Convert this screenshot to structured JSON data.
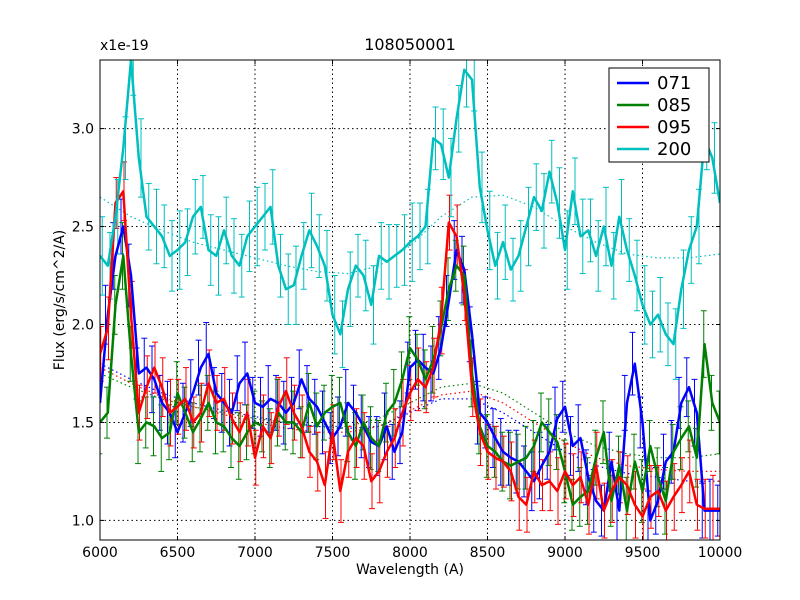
{
  "chart_data": {
    "type": "line",
    "title": "108050001",
    "xlabel": "Wavelength (A)",
    "ylabel": "Flux (erg/s/cm^2/A)",
    "offset_label": "x1e-19",
    "xlim": [
      6000,
      10000
    ],
    "ylim": [
      0.9,
      3.35
    ],
    "xticks": [
      6000,
      6500,
      7000,
      7500,
      8000,
      8500,
      9000,
      9500,
      10000
    ],
    "xtick_labels": [
      "6000",
      "6500",
      "7000",
      "7500",
      "8000",
      "8500",
      "9000",
      "9500",
      "10000"
    ],
    "yticks": [
      1.0,
      1.5,
      2.0,
      2.5,
      3.0
    ],
    "ytick_labels": [
      "1.0",
      "1.5",
      "2.0",
      "2.5",
      "3.0"
    ],
    "grid": true,
    "legend_position": "top-right",
    "series": [
      {
        "name": "071",
        "color": "#0000ff",
        "x": [
          6000,
          6050,
          6100,
          6150,
          6200,
          6250,
          6300,
          6350,
          6400,
          6450,
          6500,
          6550,
          6600,
          6650,
          6700,
          6750,
          6800,
          6850,
          6900,
          6950,
          7000,
          7050,
          7100,
          7150,
          7200,
          7250,
          7300,
          7350,
          7400,
          7450,
          7500,
          7550,
          7600,
          7650,
          7700,
          7750,
          7800,
          7850,
          7900,
          7950,
          8000,
          8050,
          8100,
          8150,
          8200,
          8250,
          8300,
          8350,
          8400,
          8450,
          8500,
          8550,
          8600,
          8650,
          8700,
          8750,
          8800,
          8850,
          8900,
          8950,
          9000,
          9050,
          9100,
          9150,
          9200,
          9250,
          9300,
          9350,
          9400,
          9450,
          9500,
          9550,
          9600,
          9650,
          9700,
          9750,
          9800,
          9850,
          9900,
          9950,
          10000
        ],
        "y": [
          1.6,
          2.05,
          2.35,
          2.5,
          2.25,
          1.75,
          1.78,
          1.72,
          1.6,
          1.55,
          1.45,
          1.55,
          1.65,
          1.78,
          1.85,
          1.65,
          1.6,
          1.55,
          1.7,
          1.75,
          1.6,
          1.58,
          1.62,
          1.6,
          1.55,
          1.6,
          1.72,
          1.62,
          1.58,
          1.5,
          1.42,
          1.48,
          1.6,
          1.55,
          1.48,
          1.4,
          1.38,
          1.48,
          1.35,
          1.45,
          1.78,
          1.82,
          1.78,
          1.75,
          1.88,
          2.12,
          2.38,
          2.28,
          1.95,
          1.55,
          1.5,
          1.42,
          1.35,
          1.32,
          1.3,
          1.25,
          1.2,
          1.28,
          1.35,
          1.52,
          1.58,
          1.38,
          1.42,
          1.22,
          1.1,
          1.05,
          1.3,
          1.05,
          1.6,
          1.8,
          1.5,
          1.0,
          1.1,
          1.3,
          1.35,
          1.6,
          1.68,
          1.55,
          1.05,
          1.05,
          1.05
        ]
      },
      {
        "name": "085",
        "color": "#008000",
        "x": [
          6000,
          6050,
          6100,
          6150,
          6200,
          6250,
          6300,
          6350,
          6400,
          6450,
          6500,
          6550,
          6600,
          6650,
          6700,
          6750,
          6800,
          6850,
          6900,
          6950,
          7000,
          7050,
          7100,
          7150,
          7200,
          7250,
          7300,
          7350,
          7400,
          7450,
          7500,
          7550,
          7600,
          7650,
          7700,
          7750,
          7800,
          7850,
          7900,
          7950,
          8000,
          8050,
          8100,
          8150,
          8200,
          8250,
          8300,
          8350,
          8400,
          8450,
          8500,
          8550,
          8600,
          8650,
          8700,
          8750,
          8800,
          8850,
          8900,
          8950,
          9000,
          9050,
          9100,
          9150,
          9200,
          9250,
          9300,
          9350,
          9400,
          9450,
          9500,
          9550,
          9600,
          9650,
          9700,
          9750,
          9800,
          9850,
          9900,
          9950,
          10000
        ],
        "y": [
          1.5,
          1.55,
          2.1,
          2.35,
          1.85,
          1.45,
          1.5,
          1.48,
          1.42,
          1.45,
          1.65,
          1.55,
          1.45,
          1.52,
          1.6,
          1.5,
          1.48,
          1.42,
          1.38,
          1.45,
          1.5,
          1.48,
          1.42,
          1.55,
          1.5,
          1.5,
          1.45,
          1.6,
          1.48,
          1.55,
          1.58,
          1.6,
          1.45,
          1.38,
          1.5,
          1.42,
          1.38,
          1.55,
          1.6,
          1.72,
          1.88,
          1.82,
          1.72,
          1.82,
          1.98,
          2.18,
          2.3,
          2.25,
          1.75,
          1.48,
          1.38,
          1.35,
          1.3,
          1.28,
          1.3,
          1.32,
          1.38,
          1.5,
          1.45,
          1.4,
          1.25,
          1.08,
          1.12,
          1.15,
          1.32,
          1.45,
          1.1,
          1.28,
          1.05,
          1.3,
          1.15,
          1.38,
          1.22,
          1.1,
          1.35,
          1.42,
          1.48,
          1.32,
          1.9,
          1.6,
          1.5
        ]
      },
      {
        "name": "095",
        "color": "#ff0000",
        "x": [
          6000,
          6050,
          6100,
          6150,
          6200,
          6250,
          6300,
          6350,
          6400,
          6450,
          6500,
          6550,
          6600,
          6650,
          6700,
          6750,
          6800,
          6850,
          6900,
          6950,
          7000,
          7050,
          7100,
          7150,
          7200,
          7250,
          7300,
          7350,
          7400,
          7450,
          7500,
          7550,
          7600,
          7650,
          7700,
          7750,
          7800,
          7850,
          7900,
          7950,
          8000,
          8050,
          8100,
          8150,
          8200,
          8250,
          8300,
          8350,
          8400,
          8450,
          8500,
          8550,
          8600,
          8650,
          8700,
          8750,
          8800,
          8850,
          8900,
          8950,
          9000,
          9050,
          9100,
          9150,
          9200,
          9250,
          9300,
          9350,
          9400,
          9450,
          9500,
          9550,
          9600,
          9650,
          9700,
          9750,
          9800,
          9850,
          9900,
          9950,
          10000
        ],
        "y": [
          1.85,
          1.98,
          2.62,
          2.68,
          2.05,
          1.55,
          1.68,
          1.78,
          1.68,
          1.55,
          1.58,
          1.62,
          1.5,
          1.55,
          1.7,
          1.6,
          1.62,
          1.52,
          1.45,
          1.55,
          1.32,
          1.48,
          1.42,
          1.58,
          1.66,
          1.55,
          1.48,
          1.35,
          1.3,
          1.18,
          1.45,
          1.15,
          1.35,
          1.42,
          1.38,
          1.2,
          1.25,
          1.35,
          1.42,
          1.55,
          1.65,
          1.72,
          1.68,
          1.78,
          2.02,
          2.52,
          2.45,
          2.15,
          1.68,
          1.45,
          1.35,
          1.32,
          1.3,
          1.25,
          1.12,
          1.08,
          1.25,
          1.18,
          1.2,
          1.15,
          1.25,
          1.18,
          1.22,
          1.08,
          1.28,
          1.05,
          1.15,
          1.22,
          1.18,
          1.08,
          1.02,
          1.12,
          1.15,
          1.05,
          1.12,
          1.18,
          1.25,
          1.08,
          1.06,
          1.06,
          1.06
        ]
      },
      {
        "name": "200",
        "color": "#00bfbf",
        "x": [
          6000,
          6050,
          6100,
          6150,
          6200,
          6250,
          6300,
          6350,
          6400,
          6450,
          6500,
          6550,
          6600,
          6650,
          6700,
          6750,
          6800,
          6850,
          6900,
          6950,
          7000,
          7050,
          7100,
          7150,
          7200,
          7250,
          7300,
          7350,
          7400,
          7450,
          7500,
          7550,
          7600,
          7650,
          7700,
          7750,
          7800,
          7850,
          7900,
          7950,
          8000,
          8050,
          8100,
          8150,
          8200,
          8250,
          8300,
          8350,
          8400,
          8450,
          8500,
          8550,
          8600,
          8650,
          8700,
          8750,
          8800,
          8850,
          8900,
          8950,
          9000,
          9050,
          9100,
          9150,
          9200,
          9250,
          9300,
          9350,
          9400,
          9450,
          9500,
          9550,
          9600,
          9650,
          9700,
          9750,
          9800,
          9850,
          9900,
          9950,
          10000
        ],
        "y": [
          2.35,
          2.3,
          2.55,
          2.9,
          3.35,
          2.85,
          2.55,
          2.5,
          2.45,
          2.35,
          2.38,
          2.42,
          2.55,
          2.6,
          2.38,
          2.35,
          2.48,
          2.35,
          2.3,
          2.45,
          2.5,
          2.55,
          2.6,
          2.3,
          2.18,
          2.2,
          2.35,
          2.48,
          2.4,
          2.3,
          2.05,
          1.95,
          2.18,
          2.3,
          2.25,
          2.1,
          2.35,
          2.32,
          2.35,
          2.38,
          2.42,
          2.45,
          2.5,
          2.95,
          2.92,
          2.75,
          3.05,
          3.3,
          3.25,
          2.7,
          2.48,
          2.3,
          2.42,
          2.28,
          2.35,
          2.5,
          2.65,
          2.58,
          2.78,
          2.62,
          2.38,
          2.68,
          2.45,
          2.48,
          2.35,
          2.5,
          2.3,
          2.55,
          2.38,
          2.25,
          2.1,
          2.0,
          2.05,
          1.95,
          1.9,
          2.18,
          2.38,
          2.5,
          2.95,
          2.85,
          2.62
        ]
      }
    ],
    "fit_curves": [
      {
        "name": "071 fit",
        "color": "#0000ff",
        "x": [
          6000,
          6200,
          6400,
          6600,
          6800,
          7000,
          7200,
          7400,
          7600,
          7800,
          8000,
          8200,
          8400,
          8600,
          8800,
          9000,
          9200,
          9400,
          9600,
          9800,
          10000
        ],
        "y": [
          1.8,
          1.72,
          1.65,
          1.6,
          1.56,
          1.53,
          1.5,
          1.48,
          1.47,
          1.48,
          1.55,
          1.62,
          1.62,
          1.55,
          1.45,
          1.35,
          1.28,
          1.24,
          1.22,
          1.2,
          1.2
        ]
      },
      {
        "name": "085 fit",
        "color": "#008000",
        "x": [
          6000,
          6200,
          6400,
          6600,
          6800,
          7000,
          7200,
          7400,
          7600,
          7800,
          8000,
          8200,
          8400,
          8600,
          8800,
          9000,
          9200,
          9400,
          9600,
          9800,
          10000
        ],
        "y": [
          1.75,
          1.68,
          1.62,
          1.58,
          1.55,
          1.52,
          1.5,
          1.48,
          1.48,
          1.52,
          1.6,
          1.68,
          1.7,
          1.65,
          1.55,
          1.45,
          1.38,
          1.34,
          1.32,
          1.32,
          1.34
        ]
      },
      {
        "name": "095 fit",
        "color": "#ff0000",
        "x": [
          6000,
          6200,
          6400,
          6600,
          6800,
          7000,
          7200,
          7400,
          7600,
          7800,
          8000,
          8200,
          8400,
          8600,
          8800,
          9000,
          9200,
          9400,
          9600,
          9800,
          10000
        ],
        "y": [
          1.78,
          1.7,
          1.63,
          1.58,
          1.54,
          1.5,
          1.47,
          1.45,
          1.45,
          1.48,
          1.56,
          1.64,
          1.66,
          1.6,
          1.5,
          1.4,
          1.32,
          1.28,
          1.26,
          1.25,
          1.25
        ]
      },
      {
        "name": "200 fit",
        "color": "#00bfbf",
        "x": [
          6000,
          6200,
          6400,
          6600,
          6800,
          7000,
          7200,
          7400,
          7600,
          7800,
          8000,
          8200,
          8400,
          8600,
          8800,
          9000,
          9200,
          9400,
          9600,
          9800,
          10000
        ],
        "y": [
          2.65,
          2.55,
          2.48,
          2.42,
          2.38,
          2.34,
          2.3,
          2.27,
          2.26,
          2.3,
          2.4,
          2.55,
          2.65,
          2.66,
          2.6,
          2.5,
          2.42,
          2.36,
          2.34,
          2.34,
          2.36
        ]
      }
    ]
  }
}
